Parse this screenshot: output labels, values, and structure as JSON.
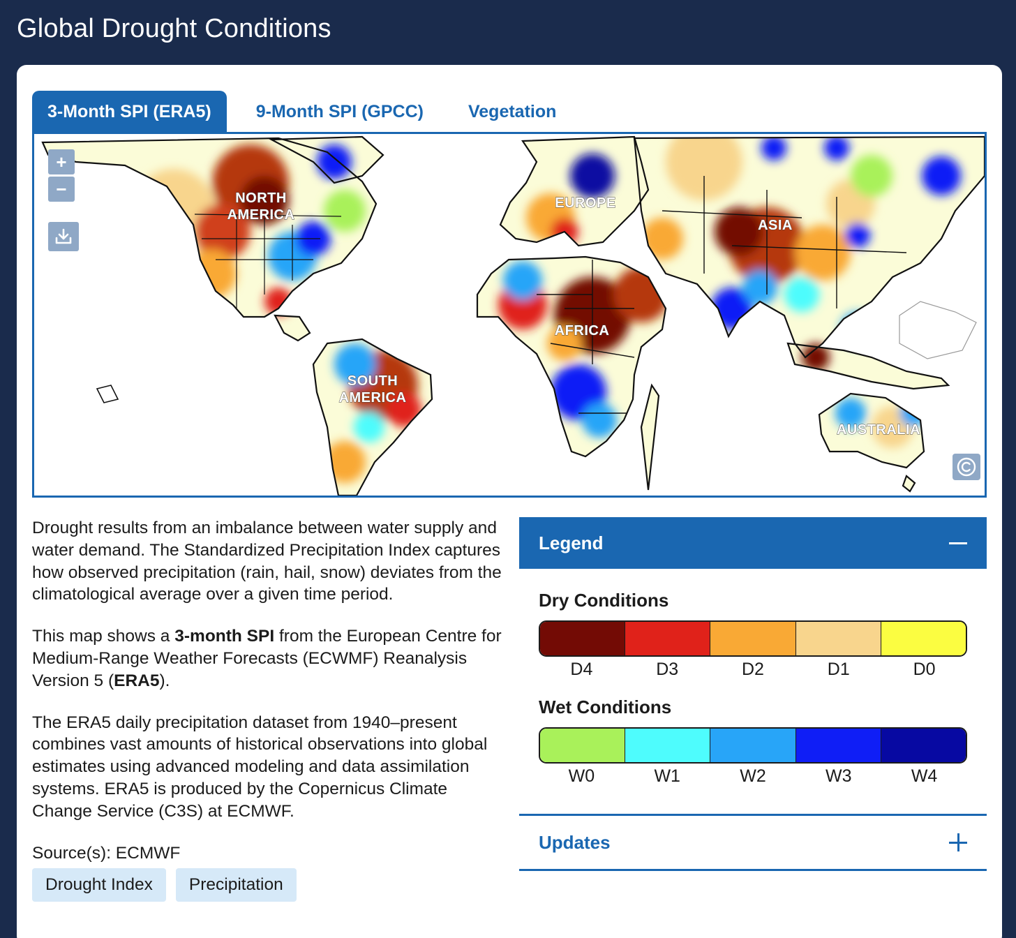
{
  "header": {
    "title": "Global Drought Conditions"
  },
  "tabs": [
    {
      "label": "3-Month SPI (ERA5)",
      "active": true
    },
    {
      "label": "9-Month SPI (GPCC)",
      "active": false
    },
    {
      "label": "Vegetation",
      "active": false
    }
  ],
  "map": {
    "controls": {
      "zoom_in": "+",
      "zoom_out": "−"
    },
    "regions": {
      "north_america": [
        "NORTH",
        "AMERICA"
      ],
      "south_america": [
        "SOUTH",
        "AMERICA"
      ],
      "europe": "EUROPE",
      "africa": "AFRICA",
      "asia": "ASIA",
      "australia": "AUSTRALIA"
    }
  },
  "description": {
    "p1": "Drought results from an imbalance between water supply and water demand. The Standardized Precipitation Index captures how observed precipitation (rain, hail, snow) deviates from the climatological average over a given time period.",
    "p2_before": "This map shows a ",
    "p2_bold1": "3-month SPI",
    "p2_middle": " from the European Centre for Medium-Range Weather Forecasts (ECWMF) Reanalysis Version 5 (",
    "p2_bold2": "ERA5",
    "p2_after": ").",
    "p3": "The ERA5 daily precipitation dataset from 1940–present combines vast amounts of historical observations into global estimates using advanced modeling and data assimilation systems. ERA5 is produced by the Copernicus Climate Change Service (C3S) at ECMWF.",
    "source": "Source(s): ECMWF",
    "tags": [
      "Drought Index",
      "Precipitation"
    ]
  },
  "legend": {
    "title": "Legend",
    "dry": {
      "title": "Dry Conditions",
      "items": [
        {
          "label": "D4",
          "color": "#730b05"
        },
        {
          "label": "D3",
          "color": "#e0221a"
        },
        {
          "label": "D2",
          "color": "#f9a935"
        },
        {
          "label": "D1",
          "color": "#f8d58d"
        },
        {
          "label": "D0",
          "color": "#fbfd41"
        }
      ]
    },
    "wet": {
      "title": "Wet Conditions",
      "items": [
        {
          "label": "W0",
          "color": "#a9f15a"
        },
        {
          "label": "W1",
          "color": "#4efcfd"
        },
        {
          "label": "W2",
          "color": "#28a5f8"
        },
        {
          "label": "W3",
          "color": "#0f1ef6"
        },
        {
          "label": "W4",
          "color": "#0709a2"
        }
      ]
    }
  },
  "updates": {
    "title": "Updates"
  }
}
